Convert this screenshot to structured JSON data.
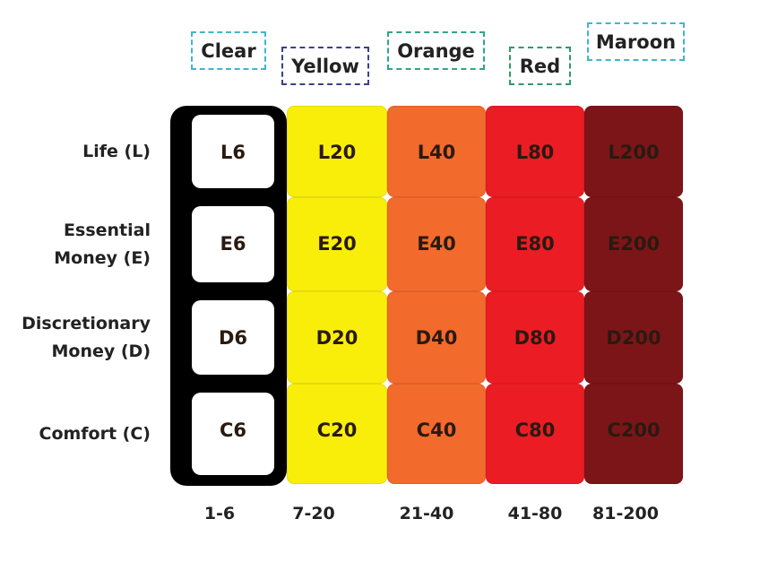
{
  "columns": [
    {
      "label": "Clear",
      "range": "1-6"
    },
    {
      "label": "Yellow",
      "range": "7-20"
    },
    {
      "label": "Orange",
      "range": "21-40"
    },
    {
      "label": "Red",
      "range": "41-80"
    },
    {
      "label": "Maroon",
      "range": "81-200"
    }
  ],
  "rows": [
    {
      "label": "Life (L)",
      "cells": [
        "L6",
        "L20",
        "L40",
        "L80",
        "L200"
      ]
    },
    {
      "label": "Essential Money (E)",
      "cells": [
        "E6",
        "E20",
        "E40",
        "E80",
        "E200"
      ]
    },
    {
      "label": "Discretionary Money (D)",
      "cells": [
        "D6",
        "D20",
        "D40",
        "D80",
        "D200"
      ]
    },
    {
      "label": "Comfort (C)",
      "cells": [
        "C6",
        "C20",
        "C40",
        "C80",
        "C200"
      ]
    }
  ]
}
